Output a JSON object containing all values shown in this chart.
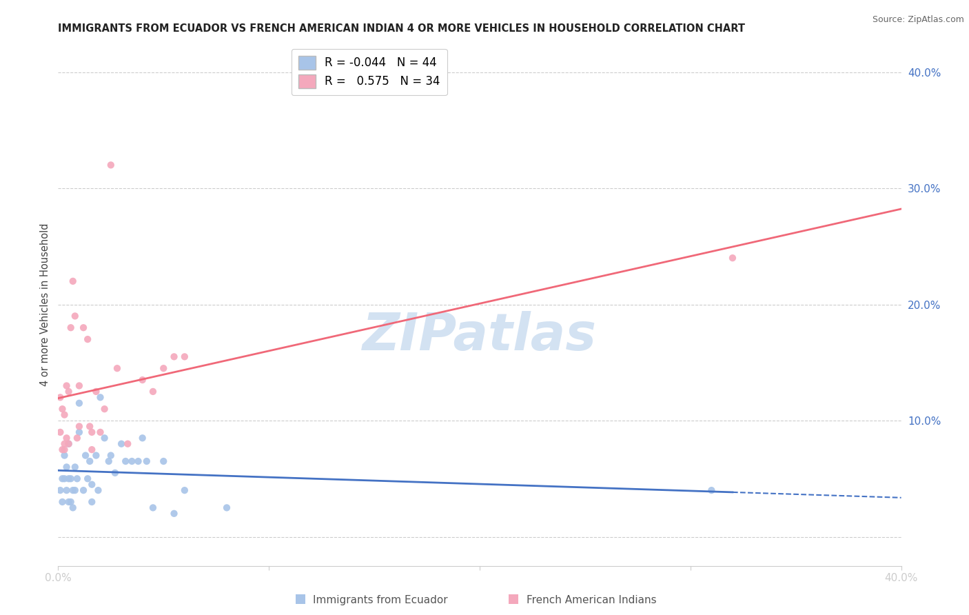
{
  "title": "IMMIGRANTS FROM ECUADOR VS FRENCH AMERICAN INDIAN 4 OR MORE VEHICLES IN HOUSEHOLD CORRELATION CHART",
  "source": "Source: ZipAtlas.com",
  "ylabel": "4 or more Vehicles in Household",
  "yticks": [
    0.0,
    0.1,
    0.2,
    0.3,
    0.4
  ],
  "xlim": [
    0.0,
    0.4
  ],
  "ylim": [
    -0.025,
    0.425
  ],
  "ecuador_color": "#a8c4e8",
  "french_color": "#f4a8bc",
  "trendline_ecuador_color": "#4472c4",
  "trendline_french_color": "#f06878",
  "watermark_color": "#ccddf0",
  "title_fontsize": 10.5,
  "source_fontsize": 9,
  "ecuador_R": -0.044,
  "ecuador_N": 44,
  "french_R": 0.575,
  "french_N": 34,
  "ecuador_x": [
    0.001,
    0.002,
    0.002,
    0.003,
    0.003,
    0.004,
    0.004,
    0.005,
    0.005,
    0.005,
    0.006,
    0.006,
    0.007,
    0.007,
    0.008,
    0.008,
    0.009,
    0.01,
    0.01,
    0.012,
    0.013,
    0.014,
    0.015,
    0.016,
    0.016,
    0.018,
    0.019,
    0.02,
    0.022,
    0.024,
    0.025,
    0.027,
    0.03,
    0.032,
    0.035,
    0.038,
    0.04,
    0.042,
    0.045,
    0.05,
    0.055,
    0.06,
    0.08,
    0.31
  ],
  "ecuador_y": [
    0.04,
    0.03,
    0.05,
    0.07,
    0.05,
    0.04,
    0.06,
    0.08,
    0.05,
    0.03,
    0.05,
    0.03,
    0.04,
    0.025,
    0.06,
    0.04,
    0.05,
    0.115,
    0.09,
    0.04,
    0.07,
    0.05,
    0.065,
    0.045,
    0.03,
    0.07,
    0.04,
    0.12,
    0.085,
    0.065,
    0.07,
    0.055,
    0.08,
    0.065,
    0.065,
    0.065,
    0.085,
    0.065,
    0.025,
    0.065,
    0.02,
    0.04,
    0.025,
    0.04
  ],
  "french_x": [
    0.001,
    0.001,
    0.002,
    0.002,
    0.003,
    0.003,
    0.003,
    0.004,
    0.004,
    0.005,
    0.005,
    0.006,
    0.007,
    0.008,
    0.009,
    0.01,
    0.01,
    0.012,
    0.014,
    0.015,
    0.016,
    0.016,
    0.018,
    0.02,
    0.022,
    0.025,
    0.028,
    0.033,
    0.04,
    0.045,
    0.05,
    0.055,
    0.06,
    0.32
  ],
  "french_y": [
    0.09,
    0.12,
    0.075,
    0.11,
    0.08,
    0.075,
    0.105,
    0.13,
    0.085,
    0.08,
    0.125,
    0.18,
    0.22,
    0.19,
    0.085,
    0.13,
    0.095,
    0.18,
    0.17,
    0.095,
    0.09,
    0.075,
    0.125,
    0.09,
    0.11,
    0.32,
    0.145,
    0.08,
    0.135,
    0.125,
    0.145,
    0.155,
    0.155,
    0.24
  ]
}
